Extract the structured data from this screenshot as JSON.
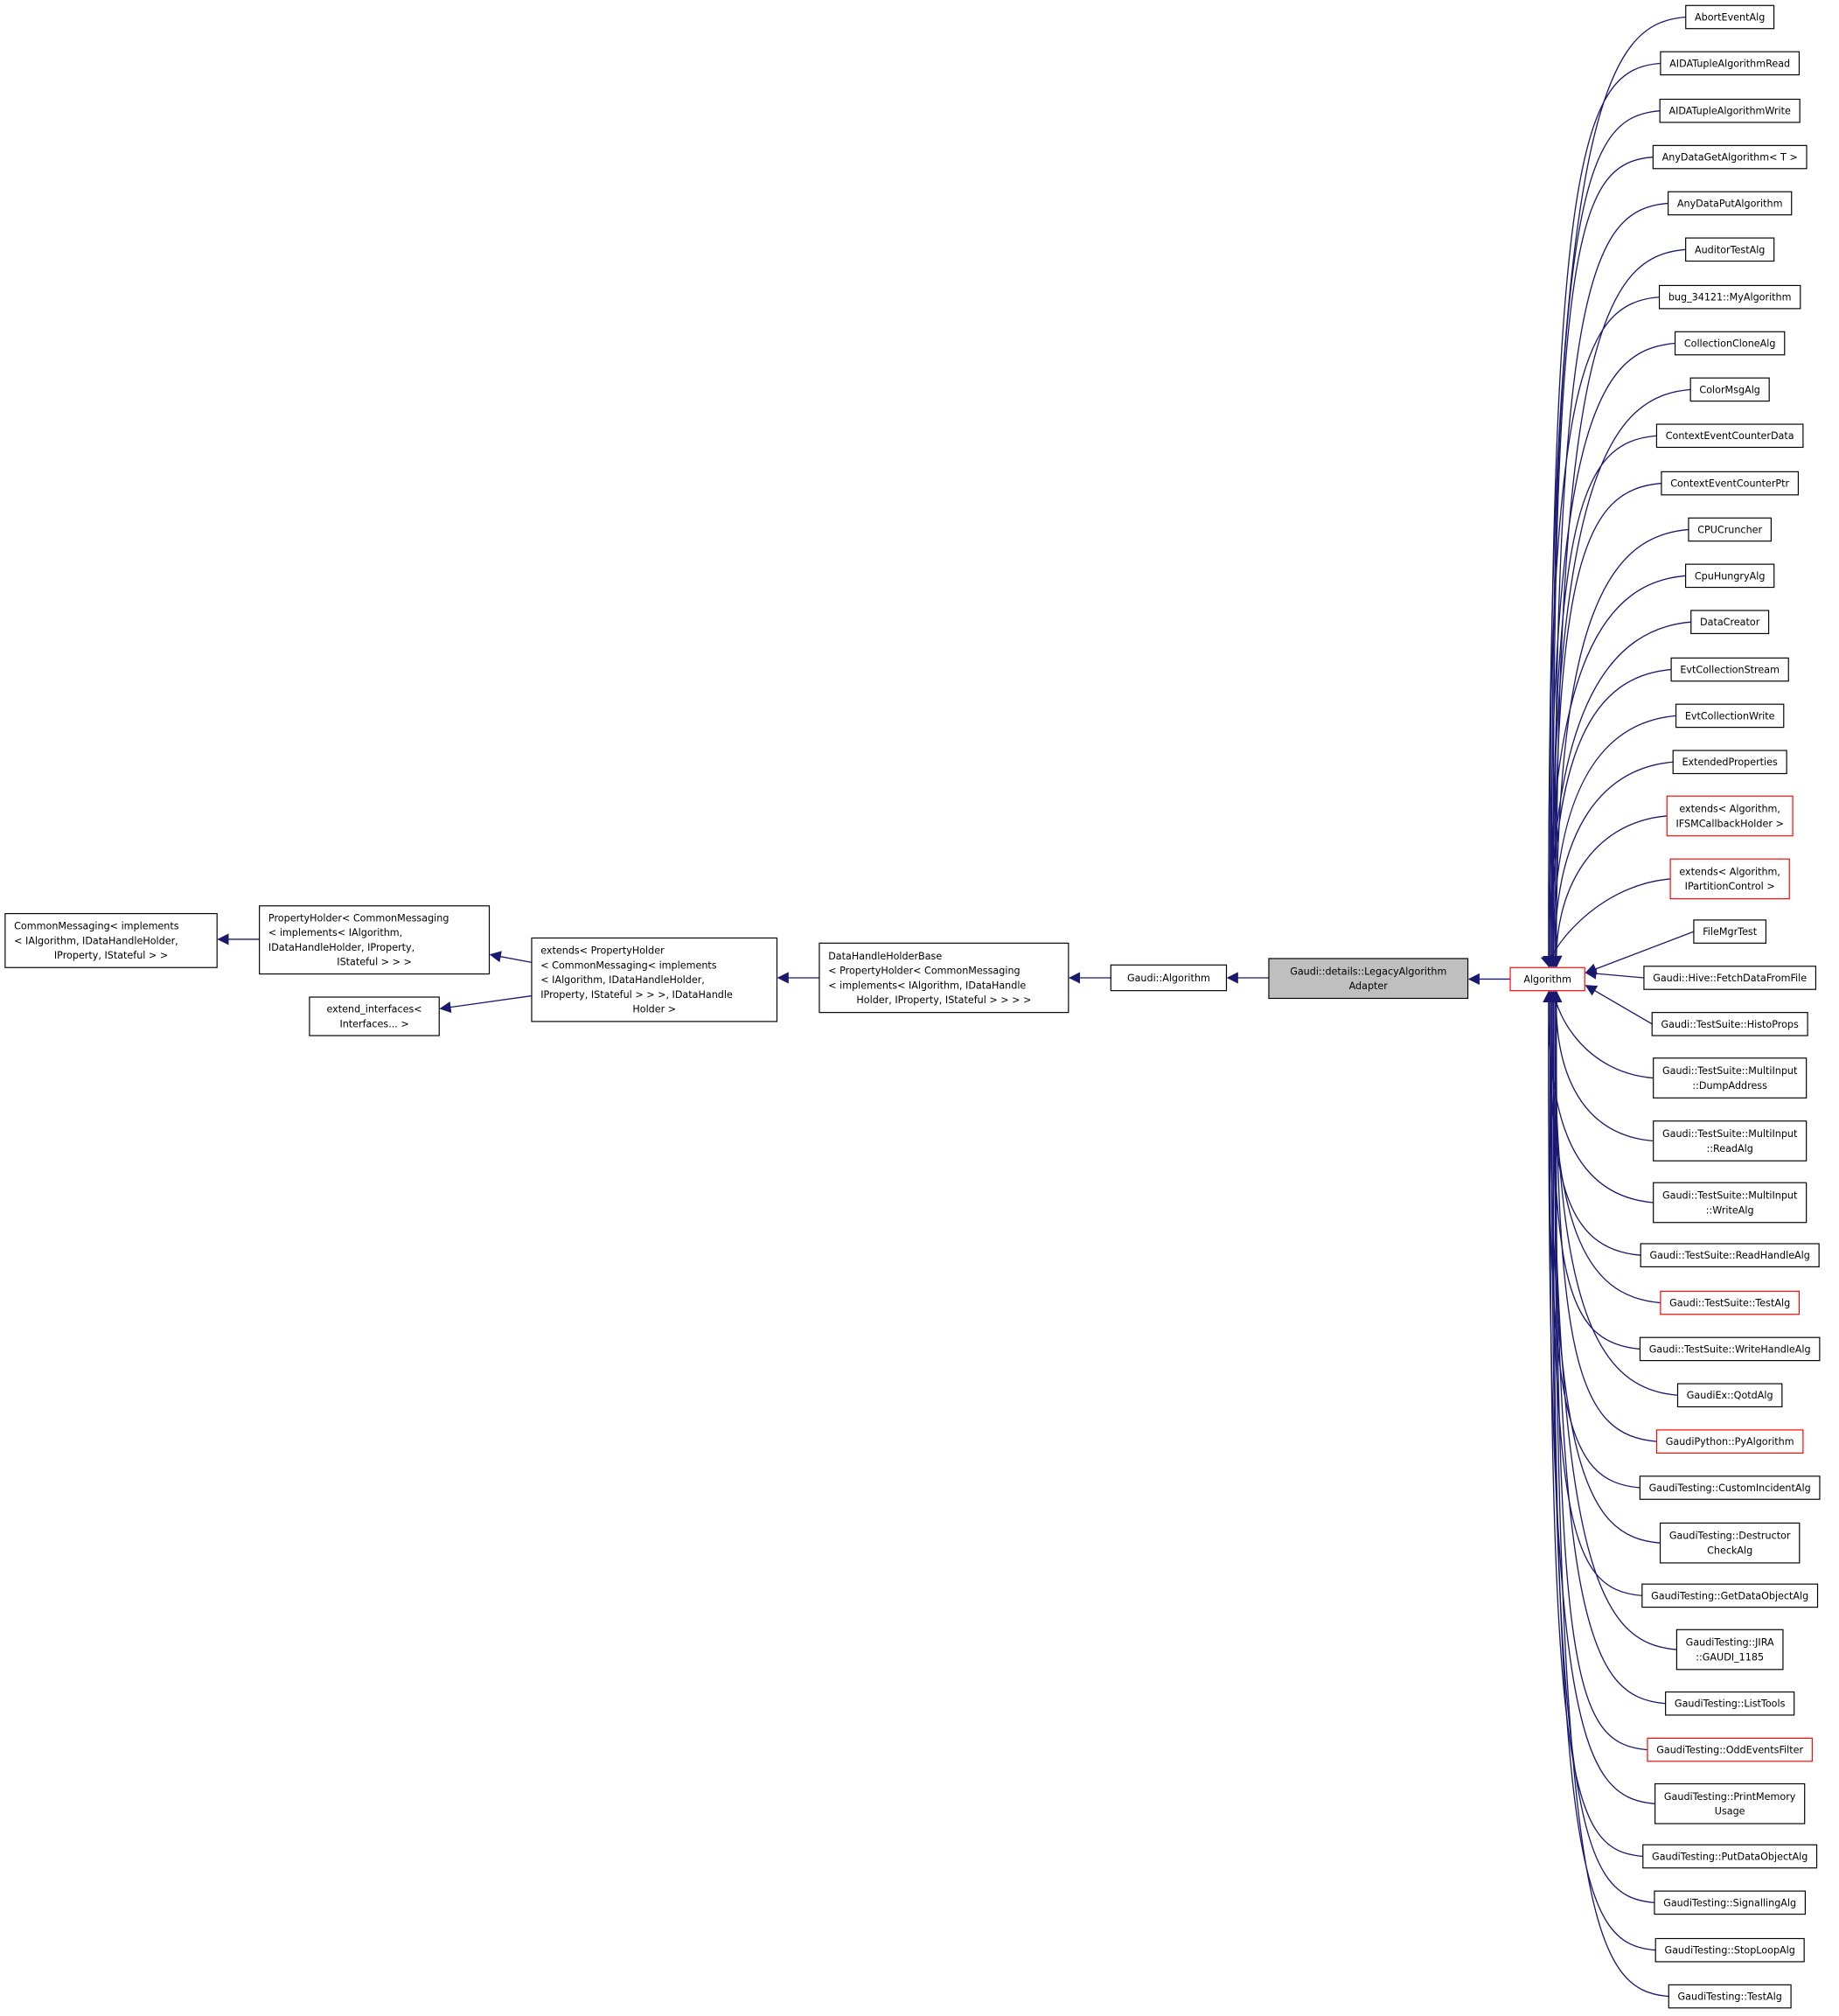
{
  "colors": {
    "edge": "#191970",
    "normal_border": "#000000",
    "incomplete_border": "#ff0000",
    "focus_fill": "#bfbfbf"
  },
  "base_nodes": [
    {
      "id": "commonmessaging",
      "lines": [
        "CommonMessaging< implements",
        "< IAlgorithm, IDataHandleHolder,",
        "IProperty, IStateful > >"
      ],
      "align": [
        "start",
        "start",
        "middle"
      ]
    },
    {
      "id": "propertyholder",
      "lines": [
        "PropertyHolder< CommonMessaging",
        "< implements< IAlgorithm,",
        "IDataHandleHolder, IProperty,",
        "IStateful > > >"
      ],
      "align": [
        "start",
        "start",
        "start",
        "middle"
      ]
    },
    {
      "id": "extend-interfaces",
      "lines": [
        "extend_interfaces<",
        "Interfaces... >"
      ],
      "align": [
        "middle",
        "middle"
      ]
    },
    {
      "id": "extends-propertyholder",
      "lines": [
        "extends< PropertyHolder",
        "< CommonMessaging< implements",
        "< IAlgorithm, IDataHandleHolder,",
        "IProperty, IStateful > > >, IDataHandle",
        "Holder >"
      ],
      "align": [
        "start",
        "start",
        "start",
        "start",
        "middle"
      ]
    },
    {
      "id": "datahandleholderbase",
      "lines": [
        "DataHandleHolderBase",
        "< PropertyHolder< CommonMessaging",
        "< implements< IAlgorithm, IDataHandle",
        "Holder, IProperty, IStateful > > > >"
      ],
      "align": [
        "start",
        "start",
        "start",
        "middle"
      ]
    },
    {
      "id": "gaudi-algorithm",
      "lines": [
        "Gaudi::Algorithm"
      ],
      "align": [
        "middle"
      ]
    },
    {
      "id": "legacy-algorithm-adapter",
      "lines": [
        "Gaudi::details::LegacyAlgorithm",
        "Adapter"
      ],
      "align": [
        "middle",
        "middle"
      ],
      "focus": true
    },
    {
      "id": "algorithm",
      "lines": [
        "Algorithm"
      ],
      "align": [
        "middle"
      ],
      "red": true
    }
  ],
  "derived_nodes": [
    {
      "lines": [
        "AbortEventAlg"
      ]
    },
    {
      "lines": [
        "AIDATupleAlgorithmRead"
      ]
    },
    {
      "lines": [
        "AIDATupleAlgorithmWrite"
      ]
    },
    {
      "lines": [
        "AnyDataGetAlgorithm< T >"
      ]
    },
    {
      "lines": [
        "AnyDataPutAlgorithm"
      ]
    },
    {
      "lines": [
        "AuditorTestAlg"
      ]
    },
    {
      "lines": [
        "bug_34121::MyAlgorithm"
      ]
    },
    {
      "lines": [
        "CollectionCloneAlg"
      ]
    },
    {
      "lines": [
        "ColorMsgAlg"
      ]
    },
    {
      "lines": [
        "ContextEventCounterData"
      ]
    },
    {
      "lines": [
        "ContextEventCounterPtr"
      ]
    },
    {
      "lines": [
        "CPUCruncher"
      ]
    },
    {
      "lines": [
        "CpuHungryAlg"
      ]
    },
    {
      "lines": [
        "DataCreator"
      ]
    },
    {
      "lines": [
        "EvtCollectionStream"
      ]
    },
    {
      "lines": [
        "EvtCollectionWrite"
      ]
    },
    {
      "lines": [
        "ExtendedProperties"
      ]
    },
    {
      "lines": [
        "extends< Algorithm,",
        "IFSMCallbackHolder >"
      ],
      "red": true
    },
    {
      "lines": [
        "extends< Algorithm,",
        "IPartitionControl >"
      ],
      "red": true
    },
    {
      "lines": [
        "FileMgrTest"
      ]
    },
    {
      "lines": [
        "Gaudi::Hive::FetchDataFromFile"
      ]
    },
    {
      "lines": [
        "Gaudi::TestSuite::HistoProps"
      ]
    },
    {
      "lines": [
        "Gaudi::TestSuite::MultiInput",
        "::DumpAddress"
      ]
    },
    {
      "lines": [
        "Gaudi::TestSuite::MultiInput",
        "::ReadAlg"
      ]
    },
    {
      "lines": [
        "Gaudi::TestSuite::MultiInput",
        "::WriteAlg"
      ]
    },
    {
      "lines": [
        "Gaudi::TestSuite::ReadHandleAlg"
      ]
    },
    {
      "lines": [
        "Gaudi::TestSuite::TestAlg"
      ],
      "red": true
    },
    {
      "lines": [
        "Gaudi::TestSuite::WriteHandleAlg"
      ]
    },
    {
      "lines": [
        "GaudiEx::QotdAlg"
      ]
    },
    {
      "lines": [
        "GaudiPython::PyAlgorithm"
      ],
      "red": true
    },
    {
      "lines": [
        "GaudiTesting::CustomIncidentAlg"
      ]
    },
    {
      "lines": [
        "GaudiTesting::Destructor",
        "CheckAlg"
      ]
    },
    {
      "lines": [
        "GaudiTesting::GetDataObjectAlg"
      ]
    },
    {
      "lines": [
        "GaudiTesting::JIRA",
        "::GAUDI_1185"
      ]
    },
    {
      "lines": [
        "GaudiTesting::ListTools"
      ]
    },
    {
      "lines": [
        "GaudiTesting::OddEventsFilter"
      ],
      "red": true
    },
    {
      "lines": [
        "GaudiTesting::PrintMemory",
        "Usage"
      ]
    },
    {
      "lines": [
        "GaudiTesting::PutDataObjectAlg"
      ]
    },
    {
      "lines": [
        "GaudiTesting::SignallingAlg"
      ]
    },
    {
      "lines": [
        "GaudiTesting::StopLoopAlg"
      ]
    },
    {
      "lines": [
        "GaudiTesting::TestAlg"
      ]
    }
  ]
}
